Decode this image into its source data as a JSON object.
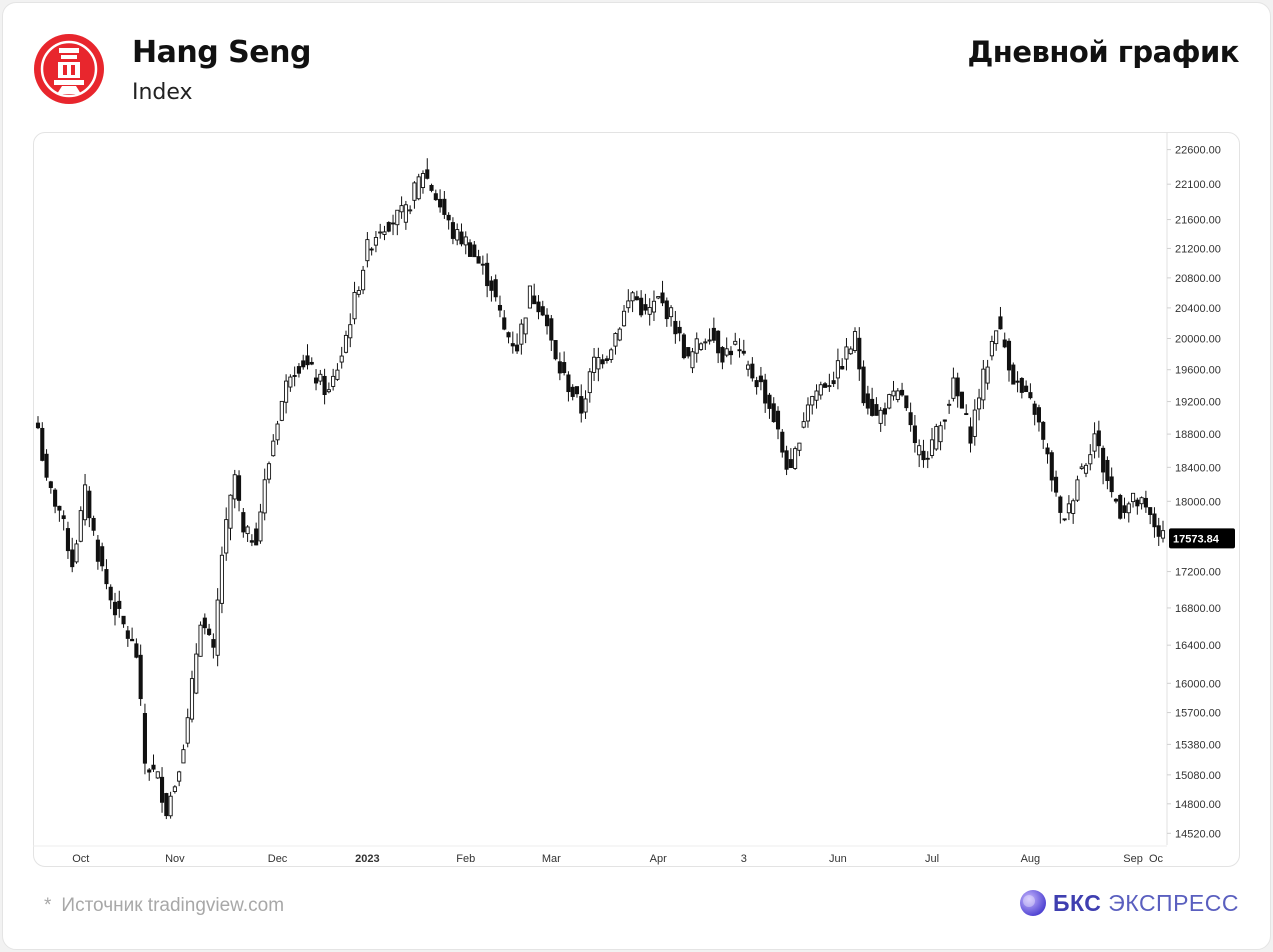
{
  "header": {
    "title": "Hang Seng",
    "subtitle": "Index",
    "right_title": "Дневной график"
  },
  "footer": {
    "star": "*",
    "source": "Источник tradingview.com",
    "brand_bold": "БКС",
    "brand_rest": " ЭКСПРЕСС"
  },
  "colors": {
    "brand_red": "#e8262d",
    "brand_purple": "#5a5fbf",
    "candle": "#111111",
    "price_tag_bg": "#000000"
  },
  "chart_data": {
    "type": "candlestick",
    "scale": "log",
    "ylim": [
      14420,
      22800
    ],
    "grid": false,
    "y_ticks": [
      22600,
      22100,
      21600,
      21200,
      20800,
      20400,
      20000,
      19600,
      19200,
      18800,
      18400,
      18000,
      17200,
      16800,
      16400,
      16000,
      15700,
      15380,
      15080,
      14800,
      14520
    ],
    "y_tick_labels": [
      "22600.00",
      "22100.00",
      "21600.00",
      "21200.00",
      "20800.00",
      "20400.00",
      "20000.00",
      "19600.00",
      "19200.00",
      "18800.00",
      "18400.00",
      "18000.00",
      "17200.00",
      "16800.00",
      "16400.00",
      "16000.00",
      "15700.00",
      "15380.00",
      "15080.00",
      "14800.00",
      "14520.00"
    ],
    "x_labels": [
      {
        "label": "Oct",
        "index": 10
      },
      {
        "label": "Nov",
        "index": 32
      },
      {
        "label": "Dec",
        "index": 56
      },
      {
        "label": "2023",
        "index": 77
      },
      {
        "label": "Feb",
        "index": 100
      },
      {
        "label": "Mar",
        "index": 120
      },
      {
        "label": "Apr",
        "index": 145
      },
      {
        "label": "3",
        "index": 165
      },
      {
        "label": "Jun",
        "index": 187
      },
      {
        "label": "Jul",
        "index": 209
      },
      {
        "label": "Aug",
        "index": 232
      },
      {
        "label": "Sep",
        "index": 256
      },
      {
        "label": "Oc",
        "index": 275
      }
    ],
    "last_price": 17573.84,
    "last_price_label": "17573.84",
    "anchors": [
      [
        0,
        18880
      ],
      [
        2,
        18200
      ],
      [
        5,
        17900
      ],
      [
        8,
        17300
      ],
      [
        11,
        18100
      ],
      [
        14,
        17400
      ],
      [
        17,
        16900
      ],
      [
        20,
        16600
      ],
      [
        23,
        16300
      ],
      [
        25,
        15200
      ],
      [
        28,
        15050
      ],
      [
        30,
        14750
      ],
      [
        32,
        15000
      ],
      [
        35,
        15600
      ],
      [
        38,
        16700
      ],
      [
        41,
        16300
      ],
      [
        43,
        17400
      ],
      [
        46,
        18300
      ],
      [
        48,
        17600
      ],
      [
        51,
        17600
      ],
      [
        53,
        18200
      ],
      [
        56,
        19000
      ],
      [
        59,
        19600
      ],
      [
        62,
        19700
      ],
      [
        65,
        19500
      ],
      [
        68,
        19300
      ],
      [
        71,
        19800
      ],
      [
        74,
        20500
      ],
      [
        77,
        21200
      ],
      [
        80,
        21500
      ],
      [
        83,
        21600
      ],
      [
        86,
        21700
      ],
      [
        90,
        22300
      ],
      [
        94,
        21800
      ],
      [
        97,
        21400
      ],
      [
        100,
        21300
      ],
      [
        103,
        21000
      ],
      [
        106,
        20700
      ],
      [
        109,
        20100
      ],
      [
        112,
        19900
      ],
      [
        115,
        20600
      ],
      [
        118,
        20400
      ],
      [
        121,
        19700
      ],
      [
        124,
        19400
      ],
      [
        127,
        19100
      ],
      [
        130,
        19700
      ],
      [
        133,
        19800
      ],
      [
        136,
        20200
      ],
      [
        139,
        20600
      ],
      [
        142,
        20300
      ],
      [
        145,
        20500
      ],
      [
        148,
        20300
      ],
      [
        150,
        20000
      ],
      [
        152,
        19700
      ],
      [
        154,
        19900
      ],
      [
        157,
        20100
      ],
      [
        160,
        19800
      ],
      [
        163,
        19900
      ],
      [
        166,
        19600
      ],
      [
        169,
        19400
      ],
      [
        172,
        19000
      ],
      [
        174,
        18600
      ],
      [
        176,
        18300
      ],
      [
        178,
        18800
      ],
      [
        180,
        19200
      ],
      [
        183,
        19400
      ],
      [
        186,
        19500
      ],
      [
        189,
        19800
      ],
      [
        191,
        20000
      ],
      [
        193,
        19300
      ],
      [
        196,
        19000
      ],
      [
        199,
        19200
      ],
      [
        202,
        19300
      ],
      [
        205,
        18600
      ],
      [
        208,
        18600
      ],
      [
        211,
        18900
      ],
      [
        214,
        19400
      ],
      [
        216,
        19100
      ],
      [
        218,
        18800
      ],
      [
        220,
        19300
      ],
      [
        222,
        19700
      ],
      [
        224,
        20200
      ],
      [
        226,
        19900
      ],
      [
        228,
        19500
      ],
      [
        230,
        19300
      ],
      [
        233,
        19100
      ],
      [
        235,
        18700
      ],
      [
        237,
        18300
      ],
      [
        239,
        17800
      ],
      [
        241,
        17900
      ],
      [
        243,
        18300
      ],
      [
        245,
        18500
      ],
      [
        247,
        18800
      ],
      [
        249,
        18400
      ],
      [
        251,
        18100
      ],
      [
        253,
        17900
      ],
      [
        256,
        18000
      ],
      [
        258,
        17950
      ],
      [
        260,
        17800
      ],
      [
        262,
        17650
      ],
      [
        263,
        17573
      ]
    ]
  }
}
